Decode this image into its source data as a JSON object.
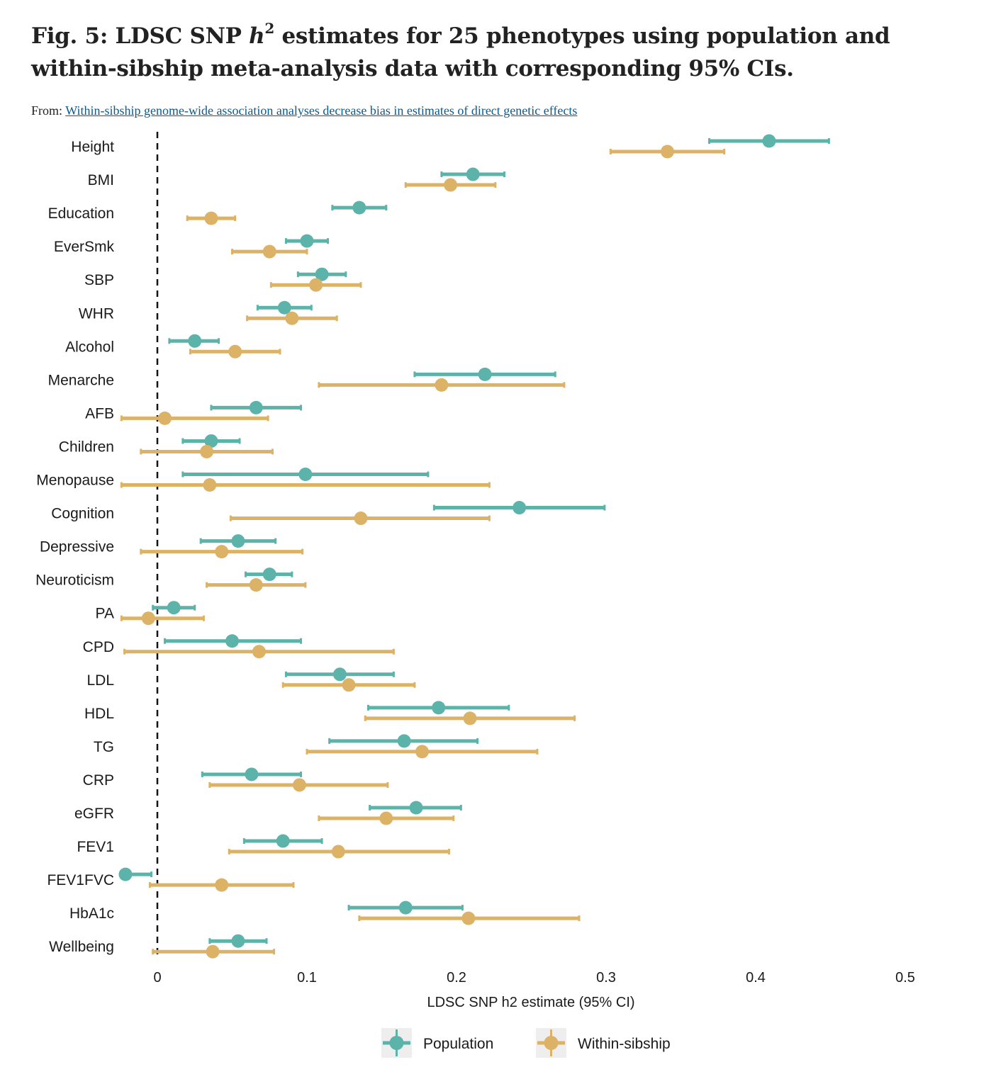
{
  "header": {
    "title_pre": "Fig. 5: LDSC SNP ",
    "title_h": "h",
    "title_sup": "2",
    "title_post": " estimates for 25 phenotypes using population and within-sibship meta-analysis data with corresponding 95% CIs.",
    "from_label": "From:",
    "from_link": "Within-sibship genome-wide association analyses decrease bias in estimates of direct genetic effects"
  },
  "colors": {
    "population": "#5cb3aa",
    "within_sibship": "#dbb266",
    "reference_line": "#111111",
    "legend_box": "#eeeeee"
  },
  "chart_data": {
    "type": "forest",
    "xlabel": "LDSC SNP h2 estimate (95% CI)",
    "xlim": [
      -0.025,
      0.5
    ],
    "xticks": [
      0,
      0.1,
      0.2,
      0.3,
      0.4,
      0.5
    ],
    "xtick_labels": [
      "0",
      "0.1",
      "0.2",
      "0.3",
      "0.4",
      "0.5"
    ],
    "reference_line": 0,
    "grid": false,
    "legend_position": "bottom",
    "series_names": [
      "Population",
      "Within-sibship"
    ],
    "phenotypes": [
      {
        "name": "Height",
        "pop": [
          0.409,
          0.369,
          0.449
        ],
        "sib": [
          0.341,
          0.303,
          0.379
        ]
      },
      {
        "name": "BMI",
        "pop": [
          0.211,
          0.19,
          0.232
        ],
        "sib": [
          0.196,
          0.166,
          0.226
        ]
      },
      {
        "name": "Education",
        "pop": [
          0.135,
          0.117,
          0.153
        ],
        "sib": [
          0.036,
          0.02,
          0.052
        ]
      },
      {
        "name": "EverSmk",
        "pop": [
          0.1,
          0.086,
          0.114
        ],
        "sib": [
          0.075,
          0.05,
          0.1
        ]
      },
      {
        "name": "SBP",
        "pop": [
          0.11,
          0.094,
          0.126
        ],
        "sib": [
          0.106,
          0.076,
          0.136
        ]
      },
      {
        "name": "WHR",
        "pop": [
          0.085,
          0.067,
          0.103
        ],
        "sib": [
          0.09,
          0.06,
          0.12
        ]
      },
      {
        "name": "Alcohol",
        "pop": [
          0.025,
          0.008,
          0.041
        ],
        "sib": [
          0.052,
          0.022,
          0.082
        ]
      },
      {
        "name": "Menarche",
        "pop": [
          0.219,
          0.172,
          0.266
        ],
        "sib": [
          0.19,
          0.108,
          0.272
        ]
      },
      {
        "name": "AFB",
        "pop": [
          0.066,
          0.036,
          0.096
        ],
        "sib": [
          0.005,
          -0.024,
          0.074
        ]
      },
      {
        "name": "Children",
        "pop": [
          0.036,
          0.017,
          0.055
        ],
        "sib": [
          0.033,
          -0.011,
          0.077
        ]
      },
      {
        "name": "Menopause",
        "pop": [
          0.099,
          0.017,
          0.181
        ],
        "sib": [
          0.035,
          -0.024,
          0.222
        ]
      },
      {
        "name": "Cognition",
        "pop": [
          0.242,
          0.185,
          0.299
        ],
        "sib": [
          0.136,
          0.049,
          0.222
        ]
      },
      {
        "name": "Depressive",
        "pop": [
          0.054,
          0.029,
          0.079
        ],
        "sib": [
          0.043,
          -0.011,
          0.097
        ]
      },
      {
        "name": "Neuroticism",
        "pop": [
          0.075,
          0.059,
          0.09
        ],
        "sib": [
          0.066,
          0.033,
          0.099
        ]
      },
      {
        "name": "PA",
        "pop": [
          0.011,
          -0.003,
          0.025
        ],
        "sib": [
          -0.006,
          -0.024,
          0.031
        ]
      },
      {
        "name": "CPD",
        "pop": [
          0.05,
          0.005,
          0.096
        ],
        "sib": [
          0.068,
          -0.022,
          0.158
        ]
      },
      {
        "name": "LDL",
        "pop": [
          0.122,
          0.086,
          0.158
        ],
        "sib": [
          0.128,
          0.084,
          0.172
        ]
      },
      {
        "name": "HDL",
        "pop": [
          0.188,
          0.141,
          0.235
        ],
        "sib": [
          0.209,
          0.139,
          0.279
        ]
      },
      {
        "name": "TG",
        "pop": [
          0.165,
          0.115,
          0.214
        ],
        "sib": [
          0.177,
          0.1,
          0.254
        ]
      },
      {
        "name": "CRP",
        "pop": [
          0.063,
          0.03,
          0.096
        ],
        "sib": [
          0.095,
          0.035,
          0.154
        ]
      },
      {
        "name": "eGFR",
        "pop": [
          0.173,
          0.142,
          0.203
        ],
        "sib": [
          0.153,
          0.108,
          0.198
        ]
      },
      {
        "name": "FEV1",
        "pop": [
          0.084,
          0.058,
          0.11
        ],
        "sib": [
          0.121,
          0.048,
          0.195
        ]
      },
      {
        "name": "FEV1FVC",
        "pop": [
          -0.022,
          -0.024,
          -0.004
        ],
        "sib": [
          0.043,
          -0.005,
          0.091
        ]
      },
      {
        "name": "HbA1c",
        "pop": [
          0.166,
          0.128,
          0.204
        ],
        "sib": [
          0.208,
          0.135,
          0.282
        ]
      },
      {
        "name": "Wellbeing",
        "pop": [
          0.054,
          0.035,
          0.073
        ],
        "sib": [
          0.037,
          -0.003,
          0.078
        ]
      }
    ]
  }
}
